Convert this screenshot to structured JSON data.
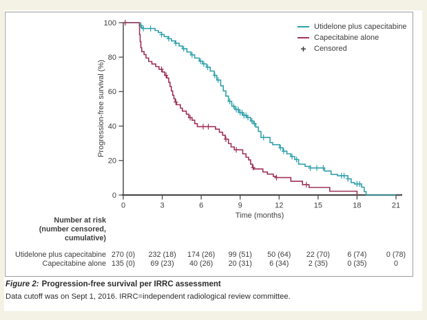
{
  "page": {
    "background_color": "#f4f2e4",
    "sheet_color": "#ffffff",
    "panel_border_color": "#9c9c9c"
  },
  "chart_data": {
    "type": "line",
    "subtype": "kaplan-meier-step",
    "title": "",
    "xlabel": "Time (months)",
    "ylabel": "Progression-free survival (%)",
    "xlim": [
      0,
      21
    ],
    "ylim": [
      0,
      100
    ],
    "xticks": [
      0,
      3,
      6,
      9,
      12,
      15,
      18,
      21
    ],
    "yticks": [
      0,
      20,
      40,
      60,
      80,
      100
    ],
    "grid": false,
    "legend_position": "top-right",
    "censored_label": "Censored",
    "axis_color": "#4a4a4a",
    "text_color": "#3d3d3d",
    "series": [
      {
        "name": "Utidelone plus capecitabine",
        "color": "#2FA0AA",
        "points": [
          [
            0,
            100
          ],
          [
            1.25,
            98.5
          ],
          [
            1.4,
            97.2
          ],
          [
            1.55,
            96.6
          ],
          [
            2.45,
            95.4
          ],
          [
            2.7,
            94.3
          ],
          [
            2.95,
            93.1
          ],
          [
            3.15,
            91.9
          ],
          [
            3.45,
            90.7
          ],
          [
            3.7,
            89.4
          ],
          [
            4.0,
            88.1
          ],
          [
            4.3,
            86.5
          ],
          [
            4.55,
            84.9
          ],
          [
            4.9,
            83.0
          ],
          [
            5.2,
            81.3
          ],
          [
            5.5,
            79.5
          ],
          [
            5.85,
            77.7
          ],
          [
            6.1,
            76.1
          ],
          [
            6.4,
            74.2
          ],
          [
            6.7,
            71.9
          ],
          [
            7.0,
            69.4
          ],
          [
            7.2,
            66.7
          ],
          [
            7.5,
            63.4
          ],
          [
            7.7,
            60.4
          ],
          [
            7.9,
            57.4
          ],
          [
            8.1,
            54.4
          ],
          [
            8.35,
            51.5
          ],
          [
            8.6,
            49.6
          ],
          [
            8.9,
            47.8
          ],
          [
            9.2,
            46.2
          ],
          [
            9.5,
            45.0
          ],
          [
            9.8,
            43.0
          ],
          [
            10.0,
            41.4
          ],
          [
            10.2,
            39.4
          ],
          [
            10.4,
            36.9
          ],
          [
            10.6,
            33.4
          ],
          [
            11.3,
            30.4
          ],
          [
            11.5,
            29.2
          ],
          [
            12.05,
            27.4
          ],
          [
            12.3,
            25.4
          ],
          [
            12.6,
            23.9
          ],
          [
            12.9,
            22.3
          ],
          [
            13.2,
            20.6
          ],
          [
            13.5,
            17.9
          ],
          [
            14.0,
            16.6
          ],
          [
            14.4,
            15.7
          ],
          [
            15.5,
            13.9
          ],
          [
            16.0,
            12.0
          ],
          [
            16.5,
            11.2
          ],
          [
            17.3,
            9.4
          ],
          [
            17.55,
            7.2
          ],
          [
            17.8,
            6.4
          ],
          [
            18.35,
            4.6
          ],
          [
            18.55,
            2.0
          ],
          [
            18.7,
            0
          ],
          [
            21,
            0
          ]
        ],
        "censor_times": [
          1.35,
          1.55,
          2.1,
          2.95,
          3.5,
          4.05,
          4.65,
          5.3,
          5.95,
          6.2,
          6.5,
          7.05,
          7.3,
          8.2,
          8.5,
          8.7,
          8.85,
          9.0,
          9.15,
          9.3,
          9.45,
          9.6,
          9.9,
          10.1,
          10.8,
          12.1,
          12.35,
          13.0,
          13.35,
          14.4,
          14.9,
          15.4,
          16.8,
          17.0,
          17.3,
          18.0,
          18.2
        ]
      },
      {
        "name": "Capecitabine alone",
        "color": "#9E3155",
        "points": [
          [
            0,
            100
          ],
          [
            1.25,
            93.0
          ],
          [
            1.3,
            89.0
          ],
          [
            1.35,
            85.5
          ],
          [
            1.42,
            83.2
          ],
          [
            1.6,
            81.5
          ],
          [
            1.75,
            79.5
          ],
          [
            1.95,
            77.5
          ],
          [
            2.2,
            76.0
          ],
          [
            2.5,
            74.5
          ],
          [
            2.75,
            73.0
          ],
          [
            3.0,
            71.4
          ],
          [
            3.2,
            69.4
          ],
          [
            3.35,
            67.9
          ],
          [
            3.5,
            65.4
          ],
          [
            3.6,
            62.9
          ],
          [
            3.7,
            60.4
          ],
          [
            3.8,
            57.9
          ],
          [
            3.9,
            55.9
          ],
          [
            4.0,
            53.9
          ],
          [
            4.1,
            52.4
          ],
          [
            4.4,
            50.4
          ],
          [
            4.55,
            48.7
          ],
          [
            4.85,
            46.9
          ],
          [
            5.05,
            44.9
          ],
          [
            5.3,
            43.4
          ],
          [
            5.5,
            41.4
          ],
          [
            5.7,
            39.7
          ],
          [
            7.1,
            38.2
          ],
          [
            7.4,
            36.4
          ],
          [
            7.65,
            34.7
          ],
          [
            7.85,
            32.4
          ],
          [
            8.1,
            29.9
          ],
          [
            8.3,
            27.9
          ],
          [
            8.55,
            26.2
          ],
          [
            9.2,
            23.9
          ],
          [
            9.45,
            21.9
          ],
          [
            9.65,
            20.4
          ],
          [
            9.8,
            17.9
          ],
          [
            9.95,
            15.9
          ],
          [
            10.05,
            15.1
          ],
          [
            10.75,
            13.4
          ],
          [
            11.1,
            12.1
          ],
          [
            11.55,
            10.8
          ],
          [
            11.75,
            10.1
          ],
          [
            12.9,
            8.0
          ],
          [
            13.8,
            6.0
          ],
          [
            14.3,
            4.4
          ],
          [
            15.9,
            2.2
          ],
          [
            18.0,
            0
          ]
        ],
        "censor_times": [
          0.15,
          2.95,
          3.3,
          4.05,
          5.15,
          6.15,
          6.55,
          7.9,
          8.7,
          10.0,
          11.8,
          14.1
        ]
      }
    ]
  },
  "risk_table": {
    "header_lines": [
      "Number at risk",
      "(number censored,",
      "cumulative)"
    ],
    "rows": [
      {
        "label": "Utidelone plus capecitabine",
        "values": [
          "270 (0)",
          "232 (18)",
          "174 (26)",
          "99 (51)",
          "50 (64)",
          "22 (70)",
          "6 (74)",
          "0 (78)"
        ]
      },
      {
        "label": "Capecitabine alone",
        "values": [
          "135 (0)",
          "69 (23)",
          "40 (26)",
          "20 (31)",
          "6 (34)",
          "2 (35)",
          "0 (35)",
          "0"
        ]
      }
    ]
  },
  "caption": {
    "figure_label": "Figure 2:",
    "title": "Progression-free survival per IRRC assessment",
    "note": "Data cutoff was on Sept 1, 2016. IRRC=independent radiological review committee."
  }
}
